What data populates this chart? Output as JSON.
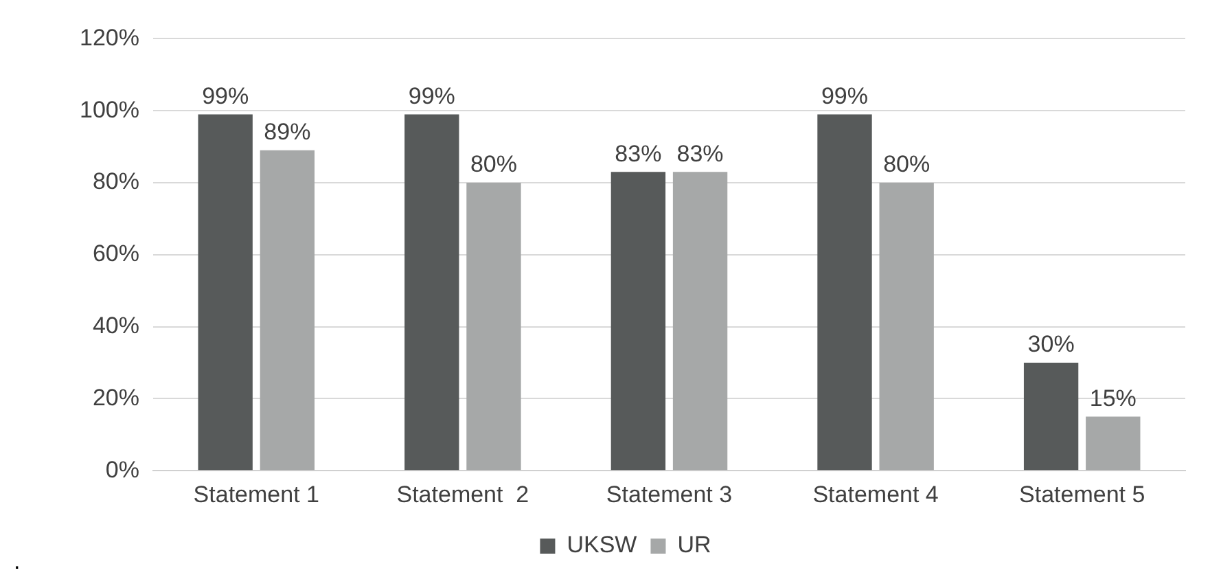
{
  "chart_data": {
    "type": "bar",
    "categories": [
      "Statement 1",
      "Statement  2",
      "Statement 3",
      "Statement 4",
      "Statement 5"
    ],
    "series": [
      {
        "name": "UKSW",
        "color": "#575a5a",
        "values": [
          99,
          99,
          83,
          99,
          30
        ],
        "value_labels": [
          "99%",
          "99%",
          "83%",
          "99%",
          "30%"
        ]
      },
      {
        "name": "UR",
        "color": "#a6a8a8",
        "values": [
          89,
          80,
          83,
          80,
          15
        ],
        "value_labels": [
          "89%",
          "80%",
          "83%",
          "80%",
          "15%"
        ]
      }
    ],
    "ylim": [
      0,
      120
    ],
    "yticks": [
      {
        "value": 0,
        "label": "0%"
      },
      {
        "value": 20,
        "label": "20%"
      },
      {
        "value": 40,
        "label": "40%"
      },
      {
        "value": 60,
        "label": "60%"
      },
      {
        "value": 80,
        "label": "80%"
      },
      {
        "value": 100,
        "label": "100%"
      },
      {
        "value": 120,
        "label": "120%"
      }
    ],
    "grid": "y",
    "legend": "bottom",
    "annotations": [
      "."
    ]
  }
}
